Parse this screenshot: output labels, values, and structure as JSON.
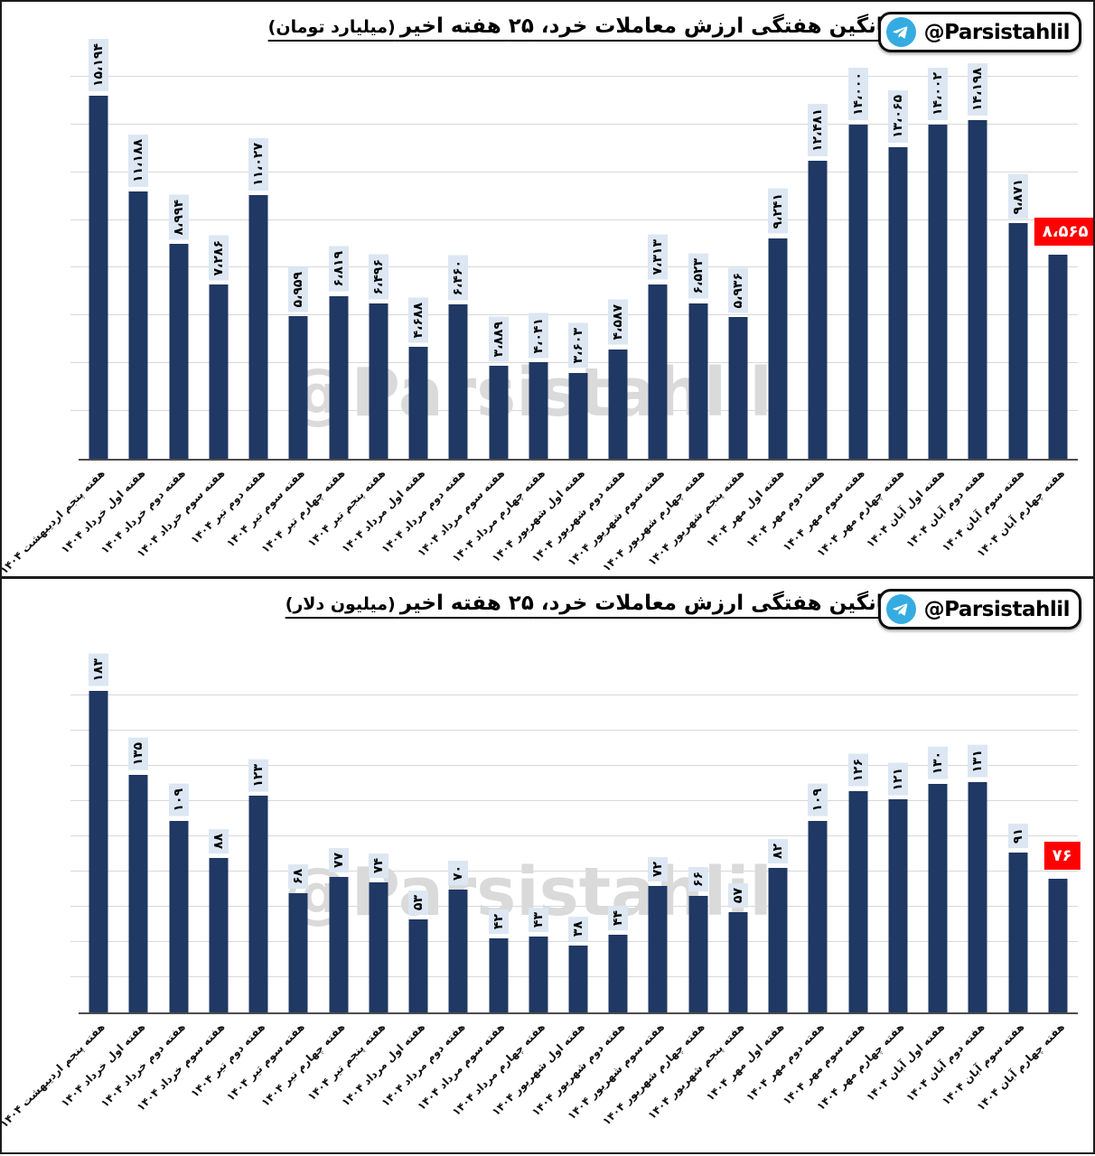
{
  "ui": {
    "badge_handle": "@Parsistahlil",
    "watermark_text": "@Parsistahlil",
    "telegram_icon": "telegram-paper-plane-icon"
  },
  "colors": {
    "bar": "#1F3864",
    "value_label_bg": "#DCE7F3",
    "highlight_bg": "#FF0000",
    "highlight_text": "#FFFFFF",
    "gridline": "#D9D9D9",
    "axis": "#4D4D4D",
    "watermark": "#DADADA",
    "telegram_blue": "#35ACE1",
    "title_text": "#000000"
  },
  "chart_data": [
    {
      "type": "bar",
      "title_main": "میانگین هفتگی ارزش معاملات خرد، ۲۵ هفته اخیر",
      "title_unit": "(میلیارد تومان)",
      "ylabel": "",
      "xlabel": "",
      "ylim": [
        0,
        16300
      ],
      "grid_step": 2000,
      "grid": "horizontal",
      "legend": "none",
      "highlight_index": 24,
      "categories": [
        "هفته پنجم اردیبهشت ۱۴۰۴",
        "هفته اول خرداد ۱۴۰۴",
        "هفته دوم خرداد ۱۴۰۴",
        "هفته سوم خرداد ۱۴۰۴",
        "هفته دوم تیر ۱۴۰۴",
        "هفته سوم تیر ۱۴۰۴",
        "هفته چهارم تیر ۱۴۰۴",
        "هفته پنجم تیر ۱۴۰۴",
        "هفته اول مرداد ۱۴۰۴",
        "هفته دوم مرداد ۱۴۰۴",
        "هفته سوم مرداد ۱۴۰۴",
        "هفته چهارم مرداد ۱۴۰۴",
        "هفته اول شهریور ۱۴۰۴",
        "هفته دوم شهریور ۱۴۰۴",
        "هفته سوم شهریور ۱۴۰۴",
        "هفته چهارم شهریور ۱۴۰۴",
        "هفته پنجم شهریور ۱۴۰۴",
        "هفته اول مهر ۱۴۰۴",
        "هفته دوم مهر ۱۴۰۴",
        "هفته سوم مهر ۱۴۰۴",
        "هفته چهارم مهر ۱۴۰۴",
        "هفته اول آبان ۱۴۰۴",
        "هفته دوم آبان ۱۴۰۴",
        "هفته سوم آبان ۱۴۰۴",
        "هفته چهارم آبان ۱۴۰۴"
      ],
      "values": [
        15194,
        11188,
        8994,
        7286,
        11027,
        5959,
        6819,
        6496,
        4688,
        6460,
        3889,
        4041,
        3603,
        4587,
        7313,
        6523,
        5936,
        9241,
        12481,
        14000,
        13065,
        14002,
        14198,
        9871,
        8565
      ],
      "value_labels": [
        "۱۵،۱۹۴",
        "۱۱،۱۸۸",
        "۸،۹۹۴",
        "۷،۲۸۶",
        "۱۱،۰۲۷",
        "۵،۹۵۹",
        "۶،۸۱۹",
        "۶،۴۹۶",
        "۴،۶۸۸",
        "۶،۴۶۰",
        "۳،۸۸۹",
        "۴،۰۴۱",
        "۳،۶۰۳",
        "۴،۵۸۷",
        "۷،۳۱۳",
        "۶،۵۲۳",
        "۵،۹۳۶",
        "۹،۲۴۱",
        "۱۲،۴۸۱",
        "۱۴،۰۰۰",
        "۱۳،۰۶۵",
        "۱۴،۰۰۲",
        "۱۴،۱۹۸",
        "۹،۸۷۱",
        "۸،۵۶۵"
      ]
    },
    {
      "type": "bar",
      "title_main": "میانگین هفتگی ارزش معاملات خرد، ۲۵ هفته اخیر",
      "title_unit": "(میلیون دلار)",
      "ylabel": "",
      "xlabel": "",
      "ylim": [
        0,
        190
      ],
      "grid_step": 20,
      "grid": "horizontal",
      "legend": "none",
      "highlight_index": 24,
      "categories": [
        "هفته پنجم اردیبهشت ۱۴۰۴",
        "هفته اول خرداد ۱۴۰۴",
        "هفته دوم خرداد ۱۴۰۴",
        "هفته سوم خرداد ۱۴۰۴",
        "هفته دوم تیر ۱۴۰۴",
        "هفته سوم تیر ۱۴۰۴",
        "هفته چهارم تیر ۱۴۰۴",
        "هفته پنجم تیر ۱۴۰۴",
        "هفته اول مرداد ۱۴۰۴",
        "هفته دوم مرداد ۱۴۰۴",
        "هفته سوم مرداد ۱۴۰۴",
        "هفته چهارم مرداد ۱۴۰۴",
        "هفته اول شهریور ۱۴۰۴",
        "هفته دوم شهریور ۱۴۰۴",
        "هفته سوم شهریور ۱۴۰۴",
        "هفته چهارم شهریور ۱۴۰۴",
        "هفته پنجم شهریور ۱۴۰۴",
        "هفته اول مهر ۱۴۰۴",
        "هفته دوم مهر ۱۴۰۴",
        "هفته سوم مهر ۱۴۰۴",
        "هفته چهارم مهر ۱۴۰۴",
        "هفته اول آبان ۱۴۰۴",
        "هفته دوم آبان ۱۴۰۴",
        "هفته سوم آبان ۱۴۰۴",
        "هفته چهارم آبان ۱۴۰۴"
      ],
      "values": [
        183,
        135,
        109,
        88,
        123,
        68,
        77,
        74,
        53,
        70,
        42,
        43,
        38,
        44,
        72,
        66,
        57,
        82,
        109,
        126,
        121,
        130,
        131,
        91,
        76
      ],
      "value_labels": [
        "۱۸۳",
        "۱۳۵",
        "۱۰۹",
        "۸۸",
        "۱۲۳",
        "۶۸",
        "۷۷",
        "۷۴",
        "۵۳",
        "۷۰",
        "۴۲",
        "۴۳",
        "۳۸",
        "۴۴",
        "۷۲",
        "۶۶",
        "۵۷",
        "۸۲",
        "۱۰۹",
        "۱۲۶",
        "۱۲۱",
        "۱۳۰",
        "۱۳۱",
        "۹۱",
        "۷۶"
      ]
    }
  ]
}
